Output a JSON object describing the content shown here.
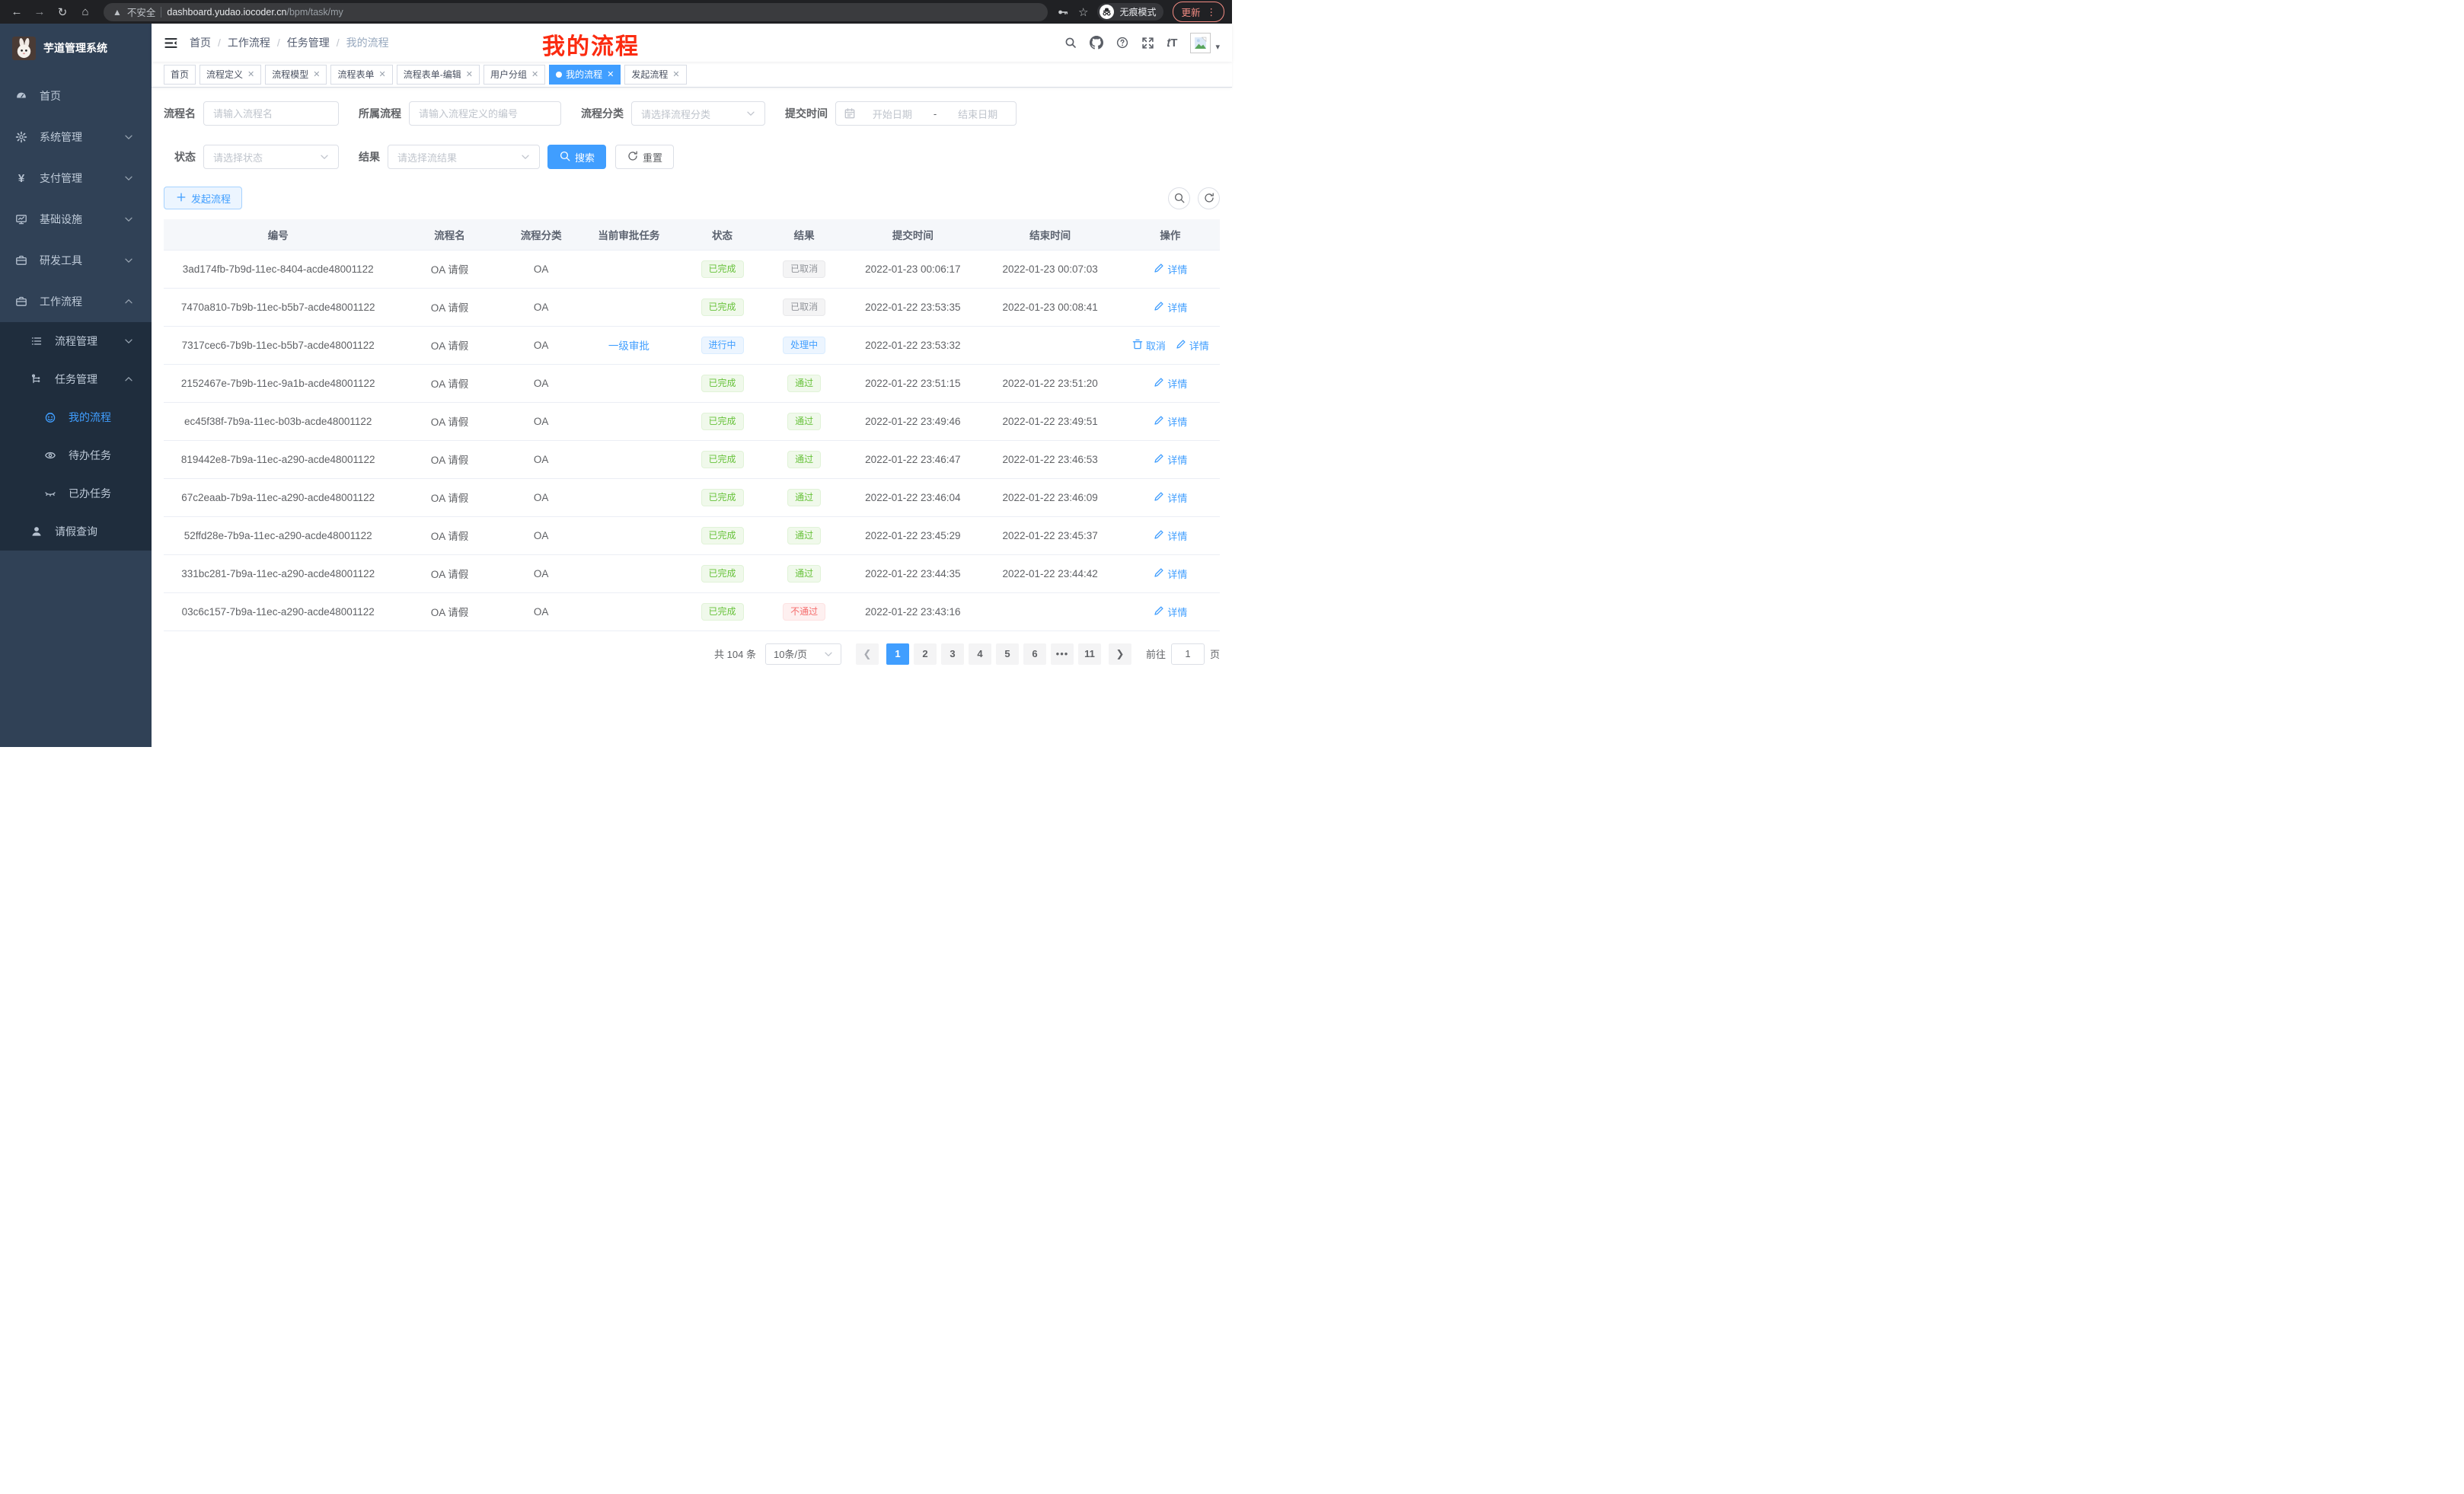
{
  "browser": {
    "security_label": "不安全",
    "url_host": "dashboard.yudao.iocoder.cn",
    "url_path": "/bpm/task/my",
    "incognito_label": "无痕模式",
    "update_label": "更新"
  },
  "sidebar": {
    "app_title": "芋道管理系统",
    "items": [
      {
        "label": "首页",
        "icon": "dashboard-icon",
        "level": 1,
        "arrow": "",
        "active": false,
        "sub": false
      },
      {
        "label": "系统管理",
        "icon": "gear-icon",
        "level": 1,
        "arrow": "down",
        "active": false,
        "sub": false
      },
      {
        "label": "支付管理",
        "icon": "yen-icon",
        "level": 1,
        "arrow": "down",
        "active": false,
        "sub": false
      },
      {
        "label": "基础设施",
        "icon": "monitor-icon",
        "level": 1,
        "arrow": "down",
        "active": false,
        "sub": false
      },
      {
        "label": "研发工具",
        "icon": "briefcase-icon",
        "level": 1,
        "arrow": "down",
        "active": false,
        "sub": false
      },
      {
        "label": "工作流程",
        "icon": "briefcase-icon",
        "level": 1,
        "arrow": "up",
        "active": false,
        "sub": false
      },
      {
        "label": "流程管理",
        "icon": "list-icon",
        "level": 2,
        "arrow": "down",
        "active": false,
        "sub": true
      },
      {
        "label": "任务管理",
        "icon": "flow-icon",
        "level": 2,
        "arrow": "up",
        "active": false,
        "sub": true
      },
      {
        "label": "我的流程",
        "icon": "robot-face-icon",
        "level": 3,
        "arrow": "",
        "active": true,
        "sub": true
      },
      {
        "label": "待办任务",
        "icon": "eye-icon",
        "level": 3,
        "arrow": "",
        "active": false,
        "sub": true
      },
      {
        "label": "已办任务",
        "icon": "eye-closed-icon",
        "level": 3,
        "arrow": "",
        "active": false,
        "sub": true
      },
      {
        "label": "请假查询",
        "icon": "user-icon",
        "level": 2,
        "arrow": "",
        "active": false,
        "sub": true
      }
    ]
  },
  "navbar": {
    "breadcrumb": [
      "首页",
      "工作流程",
      "任务管理",
      "我的流程"
    ],
    "annotation": "我的流程"
  },
  "tabs": [
    {
      "label": "首页",
      "closable": false,
      "active": false
    },
    {
      "label": "流程定义",
      "closable": true,
      "active": false
    },
    {
      "label": "流程模型",
      "closable": true,
      "active": false
    },
    {
      "label": "流程表单",
      "closable": true,
      "active": false
    },
    {
      "label": "流程表单-编辑",
      "closable": true,
      "active": false
    },
    {
      "label": "用户分组",
      "closable": true,
      "active": false
    },
    {
      "label": "我的流程",
      "closable": true,
      "active": true
    },
    {
      "label": "发起流程",
      "closable": true,
      "active": false
    }
  ],
  "filters": {
    "name_label": "流程名",
    "name_placeholder": "请输入流程名",
    "def_label": "所属流程",
    "def_placeholder": "请输入流程定义的编号",
    "category_label": "流程分类",
    "category_placeholder": "请选择流程分类",
    "time_label": "提交时间",
    "time_start_placeholder": "开始日期",
    "time_separator": "-",
    "time_end_placeholder": "结束日期",
    "status_label": "状态",
    "status_placeholder": "请选择状态",
    "result_label": "结果",
    "result_placeholder": "请选择流结果",
    "search_label": "搜索",
    "reset_label": "重置"
  },
  "toolbar": {
    "create_label": "发起流程"
  },
  "table": {
    "columns": [
      "编号",
      "流程名",
      "流程分类",
      "当前审批任务",
      "状态",
      "结果",
      "提交时间",
      "结束时间",
      "操作"
    ],
    "rows": [
      {
        "id": "3ad174fb-7b9d-11ec-8404-acde48001122",
        "name": "OA 请假",
        "category": "OA",
        "task": "",
        "status": {
          "text": "已完成",
          "type": "success"
        },
        "result": {
          "text": "已取消",
          "type": "info"
        },
        "submit_time": "2022-01-23 00:06:17",
        "end_time": "2022-01-23 00:07:03",
        "actions": [
          {
            "label": "详情",
            "icon": "edit-icon"
          }
        ]
      },
      {
        "id": "7470a810-7b9b-11ec-b5b7-acde48001122",
        "name": "OA 请假",
        "category": "OA",
        "task": "",
        "status": {
          "text": "已完成",
          "type": "success"
        },
        "result": {
          "text": "已取消",
          "type": "info"
        },
        "submit_time": "2022-01-22 23:53:35",
        "end_time": "2022-01-23 00:08:41",
        "actions": [
          {
            "label": "详情",
            "icon": "edit-icon"
          }
        ]
      },
      {
        "id": "7317cec6-7b9b-11ec-b5b7-acde48001122",
        "name": "OA 请假",
        "category": "OA",
        "task": "一级审批",
        "status": {
          "text": "进行中",
          "type": "primary"
        },
        "result": {
          "text": "处理中",
          "type": "primary"
        },
        "submit_time": "2022-01-22 23:53:32",
        "end_time": "",
        "actions": [
          {
            "label": "取消",
            "icon": "trash-icon"
          },
          {
            "label": "详情",
            "icon": "edit-icon"
          }
        ]
      },
      {
        "id": "2152467e-7b9b-11ec-9a1b-acde48001122",
        "name": "OA 请假",
        "category": "OA",
        "task": "",
        "status": {
          "text": "已完成",
          "type": "success"
        },
        "result": {
          "text": "通过",
          "type": "success"
        },
        "submit_time": "2022-01-22 23:51:15",
        "end_time": "2022-01-22 23:51:20",
        "actions": [
          {
            "label": "详情",
            "icon": "edit-icon"
          }
        ]
      },
      {
        "id": "ec45f38f-7b9a-11ec-b03b-acde48001122",
        "name": "OA 请假",
        "category": "OA",
        "task": "",
        "status": {
          "text": "已完成",
          "type": "success"
        },
        "result": {
          "text": "通过",
          "type": "success"
        },
        "submit_time": "2022-01-22 23:49:46",
        "end_time": "2022-01-22 23:49:51",
        "actions": [
          {
            "label": "详情",
            "icon": "edit-icon"
          }
        ]
      },
      {
        "id": "819442e8-7b9a-11ec-a290-acde48001122",
        "name": "OA 请假",
        "category": "OA",
        "task": "",
        "status": {
          "text": "已完成",
          "type": "success"
        },
        "result": {
          "text": "通过",
          "type": "success"
        },
        "submit_time": "2022-01-22 23:46:47",
        "end_time": "2022-01-22 23:46:53",
        "actions": [
          {
            "label": "详情",
            "icon": "edit-icon"
          }
        ]
      },
      {
        "id": "67c2eaab-7b9a-11ec-a290-acde48001122",
        "name": "OA 请假",
        "category": "OA",
        "task": "",
        "status": {
          "text": "已完成",
          "type": "success"
        },
        "result": {
          "text": "通过",
          "type": "success"
        },
        "submit_time": "2022-01-22 23:46:04",
        "end_time": "2022-01-22 23:46:09",
        "actions": [
          {
            "label": "详情",
            "icon": "edit-icon"
          }
        ]
      },
      {
        "id": "52ffd28e-7b9a-11ec-a290-acde48001122",
        "name": "OA 请假",
        "category": "OA",
        "task": "",
        "status": {
          "text": "已完成",
          "type": "success"
        },
        "result": {
          "text": "通过",
          "type": "success"
        },
        "submit_time": "2022-01-22 23:45:29",
        "end_time": "2022-01-22 23:45:37",
        "actions": [
          {
            "label": "详情",
            "icon": "edit-icon"
          }
        ]
      },
      {
        "id": "331bc281-7b9a-11ec-a290-acde48001122",
        "name": "OA 请假",
        "category": "OA",
        "task": "",
        "status": {
          "text": "已完成",
          "type": "success"
        },
        "result": {
          "text": "通过",
          "type": "success"
        },
        "submit_time": "2022-01-22 23:44:35",
        "end_time": "2022-01-22 23:44:42",
        "actions": [
          {
            "label": "详情",
            "icon": "edit-icon"
          }
        ]
      },
      {
        "id": "03c6c157-7b9a-11ec-a290-acde48001122",
        "name": "OA 请假",
        "category": "OA",
        "task": "",
        "status": {
          "text": "已完成",
          "type": "success"
        },
        "result": {
          "text": "不通过",
          "type": "danger"
        },
        "submit_time": "2022-01-22 23:43:16",
        "end_time": "",
        "actions": [
          {
            "label": "详情",
            "icon": "edit-icon"
          }
        ]
      }
    ]
  },
  "pagination": {
    "total_label": "共 104 条",
    "page_size": "10条/页",
    "pages": [
      "1",
      "2",
      "3",
      "4",
      "5",
      "6",
      "•••",
      "11"
    ],
    "active_page": "1",
    "goto_prefix": "前往",
    "goto_value": "1",
    "goto_suffix": "页"
  },
  "colors": {
    "accent": "#409eff",
    "sidebar_bg": "#304156",
    "submenu_bg": "#1f2d3d",
    "success": "#67c23a",
    "danger": "#f56c6c",
    "info": "#909399",
    "annotation_red": "#fb2b10"
  }
}
